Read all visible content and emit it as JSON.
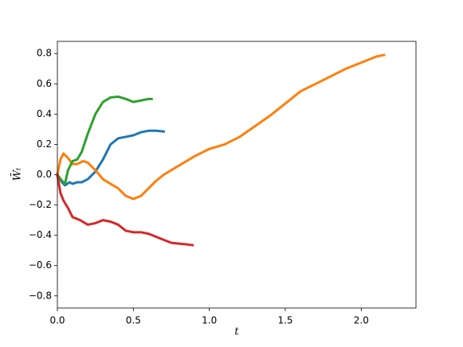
{
  "chart_data": {
    "type": "line",
    "xlabel": "t",
    "ylabel": "W̄ₜ",
    "xlim": [
      0,
      2.36
    ],
    "ylim": [
      -0.88,
      0.88
    ],
    "xticks": [
      {
        "value": 0,
        "label": "0.0"
      },
      0.5,
      {
        "value": 1,
        "label": "1.0"
      },
      1.5,
      {
        "value": 2,
        "label": "2.0"
      }
    ],
    "yticks": [
      {
        "value": -0.8,
        "label": "−0.8"
      },
      {
        "value": -0.6,
        "label": "−0.6"
      },
      {
        "value": -0.4,
        "label": "−0.4"
      },
      {
        "value": -0.2,
        "label": "−0.2"
      },
      {
        "value": 0,
        "label": "0.0"
      },
      0.2,
      0.4,
      0.6,
      0.8
    ],
    "series": [
      {
        "color": "#1f77b4",
        "x": [
          0,
          0.03,
          0.05,
          0.08,
          0.1,
          0.13,
          0.16,
          0.2,
          0.25,
          0.3,
          0.35,
          0.4,
          0.45,
          0.5,
          0.55,
          0.6,
          0.65,
          0.7
        ],
        "values": [
          0,
          -0.05,
          -0.07,
          -0.05,
          -0.06,
          -0.05,
          -0.05,
          -0.03,
          0.02,
          0.1,
          0.2,
          0.24,
          0.25,
          0.26,
          0.28,
          0.29,
          0.29,
          0.285
        ]
      },
      {
        "color": "#ff7f0e",
        "x": [
          0,
          0.02,
          0.04,
          0.07,
          0.1,
          0.13,
          0.17,
          0.2,
          0.25,
          0.3,
          0.35,
          0.4,
          0.45,
          0.5,
          0.55,
          0.6,
          0.65,
          0.7,
          0.8,
          0.9,
          1.0,
          1.1,
          1.2,
          1.3,
          1.4,
          1.5,
          1.6,
          1.7,
          1.8,
          1.9,
          2.0,
          2.1,
          2.15
        ],
        "values": [
          0,
          0.1,
          0.14,
          0.11,
          0.07,
          0.07,
          0.09,
          0.08,
          0.03,
          -0.03,
          -0.06,
          -0.09,
          -0.14,
          -0.16,
          -0.14,
          -0.09,
          -0.04,
          0,
          0.06,
          0.12,
          0.17,
          0.2,
          0.25,
          0.32,
          0.39,
          0.47,
          0.55,
          0.6,
          0.65,
          0.7,
          0.74,
          0.78,
          0.79
        ]
      },
      {
        "color": "#2ca02c",
        "x": [
          0,
          0.03,
          0.05,
          0.07,
          0.1,
          0.13,
          0.16,
          0.2,
          0.25,
          0.3,
          0.35,
          0.4,
          0.45,
          0.5,
          0.55,
          0.6,
          0.62
        ],
        "values": [
          0,
          -0.04,
          -0.06,
          0.03,
          0.09,
          0.1,
          0.15,
          0.27,
          0.4,
          0.48,
          0.51,
          0.515,
          0.5,
          0.48,
          0.49,
          0.5,
          0.5
        ]
      },
      {
        "color": "#d62728",
        "x": [
          0,
          0.02,
          0.04,
          0.07,
          0.1,
          0.15,
          0.2,
          0.25,
          0.3,
          0.35,
          0.4,
          0.45,
          0.5,
          0.55,
          0.6,
          0.65,
          0.7,
          0.75,
          0.8,
          0.85,
          0.89
        ],
        "values": [
          0,
          -0.12,
          -0.17,
          -0.22,
          -0.28,
          -0.3,
          -0.33,
          -0.32,
          -0.3,
          -0.31,
          -0.33,
          -0.37,
          -0.38,
          -0.38,
          -0.39,
          -0.41,
          -0.43,
          -0.45,
          -0.455,
          -0.46,
          -0.465
        ]
      }
    ]
  }
}
